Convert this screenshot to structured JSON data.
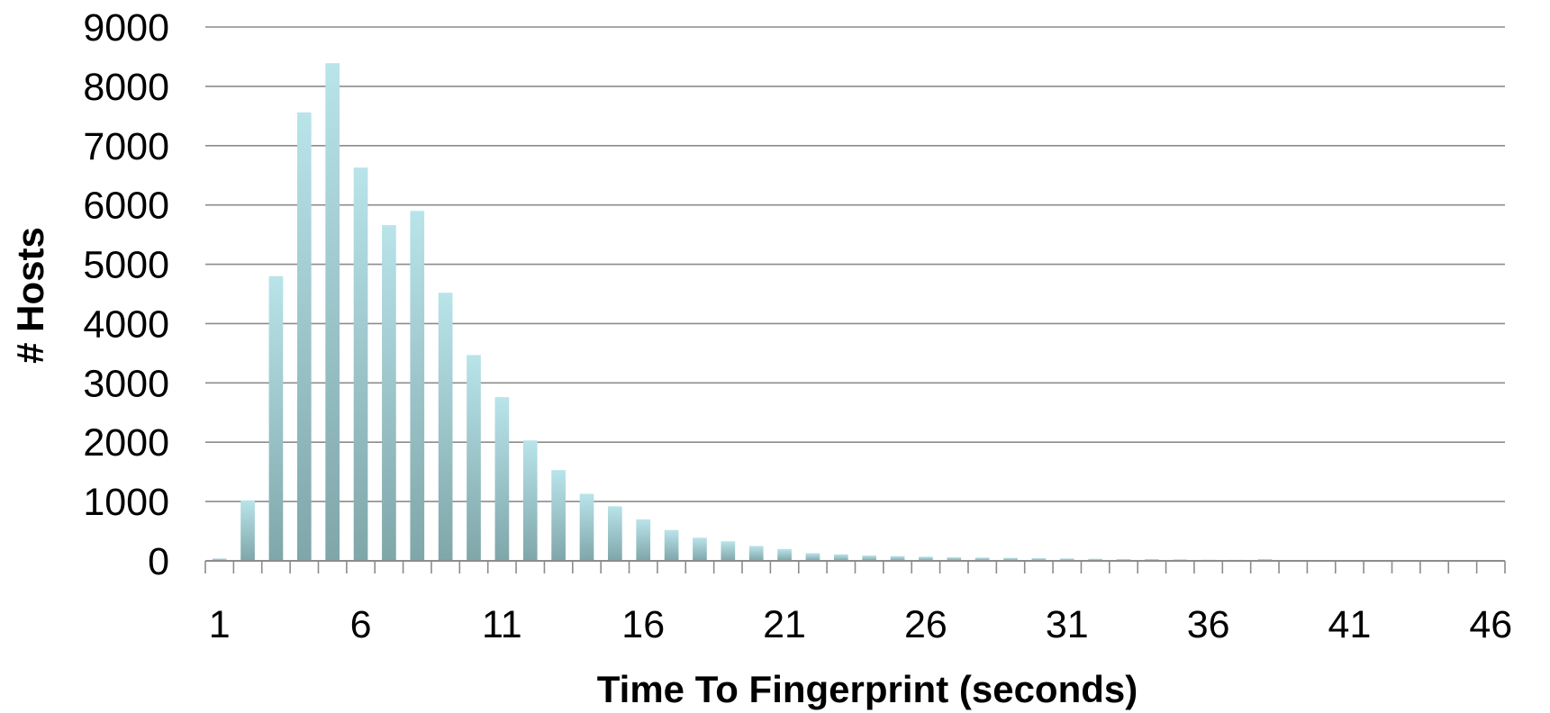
{
  "chart_data": {
    "type": "bar",
    "title": "",
    "xlabel": "Time To Fingerprint (seconds)",
    "ylabel": "# Hosts",
    "x_tick_labels": [
      "1",
      "6",
      "11",
      "16",
      "21",
      "26",
      "31",
      "36",
      "41",
      "46"
    ],
    "y_tick_labels": [
      "0",
      "1000",
      "2000",
      "3000",
      "4000",
      "5000",
      "6000",
      "7000",
      "8000",
      "9000"
    ],
    "ylim": [
      0,
      9000
    ],
    "grid": true,
    "legend": "none",
    "categories": [
      1,
      2,
      3,
      4,
      5,
      6,
      7,
      8,
      9,
      10,
      11,
      12,
      13,
      14,
      15,
      16,
      17,
      18,
      19,
      20,
      21,
      22,
      23,
      24,
      25,
      26,
      27,
      28,
      29,
      30,
      31,
      32,
      33,
      34,
      35,
      36,
      37,
      38,
      39,
      40,
      41,
      42,
      43,
      44,
      45,
      46
    ],
    "values": [
      40,
      1020,
      4800,
      7560,
      8390,
      6630,
      5660,
      5900,
      4520,
      3470,
      2760,
      2030,
      1530,
      1130,
      920,
      700,
      520,
      390,
      330,
      250,
      200,
      130,
      110,
      90,
      80,
      70,
      60,
      55,
      50,
      45,
      40,
      35,
      30,
      30,
      25,
      20,
      18,
      30,
      15,
      12,
      10,
      10,
      8,
      8,
      5,
      5
    ],
    "colors": {
      "bar_top": "#b8e4ea",
      "bar_bottom": "#7fa6a9",
      "grid": "#8c8c8c",
      "axis": "#8c8c8c"
    }
  }
}
